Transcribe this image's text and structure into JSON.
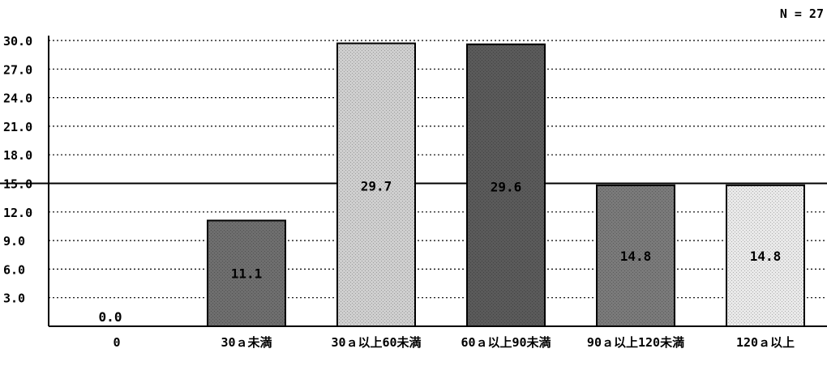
{
  "chart_data": {
    "type": "bar",
    "n_label": "N = 27",
    "categories": [
      "0",
      "30ａ未満",
      "30ａ以上60未満",
      "60ａ以上90未満",
      "90ａ以上120未満",
      "120ａ以上"
    ],
    "values": [
      0.0,
      11.1,
      29.7,
      29.6,
      14.8,
      14.8
    ],
    "data_labels": [
      "0.0",
      "11.1",
      "29.7",
      "29.6",
      "14.8",
      "14.8"
    ],
    "y_ticks": [
      "30.0",
      "27.0",
      "24.0",
      "21.0",
      "18.0",
      "15.0",
      "12.0",
      "9.0",
      "6.0",
      "3.0"
    ],
    "ylim": [
      0,
      30
    ],
    "reference_line": 15.0,
    "grid": "dotted horizontal",
    "colors": {
      "bar_fills": [
        "#ffffff",
        "#6e6e6e",
        "#cfcfcf",
        "#5a5a5a",
        "#7a7a7a",
        "#e9e9e9"
      ],
      "outline": "#000000"
    }
  }
}
